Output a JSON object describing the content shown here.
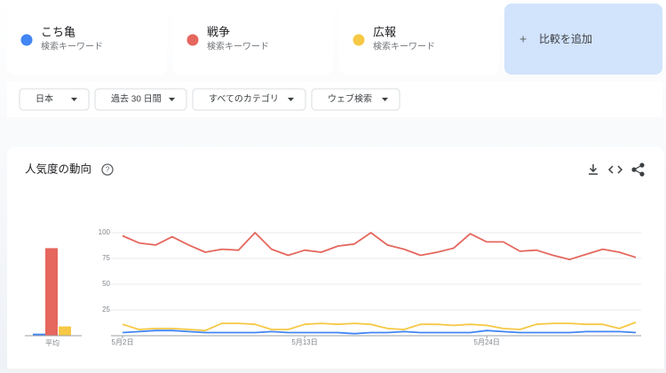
{
  "cards": [
    {
      "label": "検索キーワード"
    },
    {
      "label": "検索キーワード"
    },
    {
      "label": "検索キーワード"
    }
  ],
  "compare": "比較を追加",
  "filters": [
    "日本",
    "過去 30 日間",
    "すべてのカテゴリ",
    "ウェブ検索"
  ],
  "chart_data": [
    {
      "type": "bar",
      "categories": [
        "平均"
      ],
      "ylim": [
        0,
        100
      ],
      "series": [
        {
          "color": "#4285f4",
          "values": [
            2
          ]
        },
        {
          "color": "#e5675d",
          "values": [
            85
          ]
        },
        {
          "color": "#f6c844",
          "values": [
            9
          ]
        }
      ]
    },
    {
      "type": "line",
      "title": "人気度の動向",
      "ylim": [
        0,
        100
      ],
      "yticks": [
        25,
        50,
        75,
        100
      ],
      "grid": true,
      "categories": [
        "5月2日",
        null,
        null,
        null,
        null,
        null,
        null,
        null,
        null,
        null,
        null,
        "5月13日",
        null,
        null,
        null,
        null,
        null,
        null,
        null,
        null,
        null,
        null,
        "5月24日",
        null,
        null,
        null,
        null,
        null,
        null,
        null,
        null,
        null
      ],
      "series": [
        {
          "name": "こち亀",
          "color": "#4285f4",
          "values": [
            3,
            4,
            5,
            5,
            4,
            3,
            3,
            3,
            3,
            4,
            3,
            3,
            3,
            3,
            2,
            3,
            3,
            4,
            3,
            3,
            3,
            3,
            5,
            4,
            3,
            3,
            3,
            3,
            4,
            4,
            4,
            3
          ]
        },
        {
          "name": "戦争",
          "color": "#e5675d",
          "values": [
            97,
            90,
            88,
            96,
            88,
            81,
            84,
            83,
            100,
            84,
            78,
            83,
            81,
            87,
            89,
            100,
            88,
            84,
            78,
            81,
            85,
            99,
            91,
            91,
            82,
            83,
            78,
            74,
            79,
            84,
            81,
            76
          ]
        },
        {
          "name": "広報",
          "color": "#f6c844",
          "values": [
            11,
            6,
            7,
            7,
            6,
            5,
            12,
            12,
            11,
            6,
            6,
            11,
            12,
            11,
            12,
            11,
            7,
            6,
            11,
            11,
            10,
            11,
            10,
            7,
            6,
            11,
            12,
            12,
            11,
            11,
            7,
            13
          ]
        }
      ]
    }
  ]
}
